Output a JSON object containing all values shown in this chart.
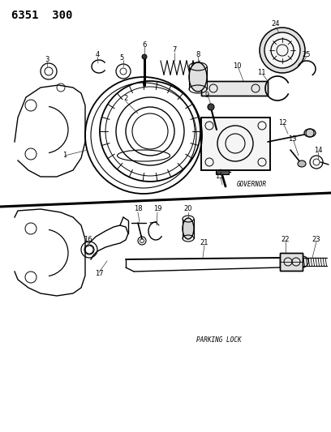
{
  "title": "6351  300",
  "governor_label": "GOVERNOR",
  "parking_label": "PARKING LOCK",
  "bg_color": "#ffffff",
  "title_fontsize": 10,
  "label_fontsize": 5.5,
  "number_fontsize": 6,
  "figw": 4.08,
  "figh": 5.33,
  "dpi": 100
}
